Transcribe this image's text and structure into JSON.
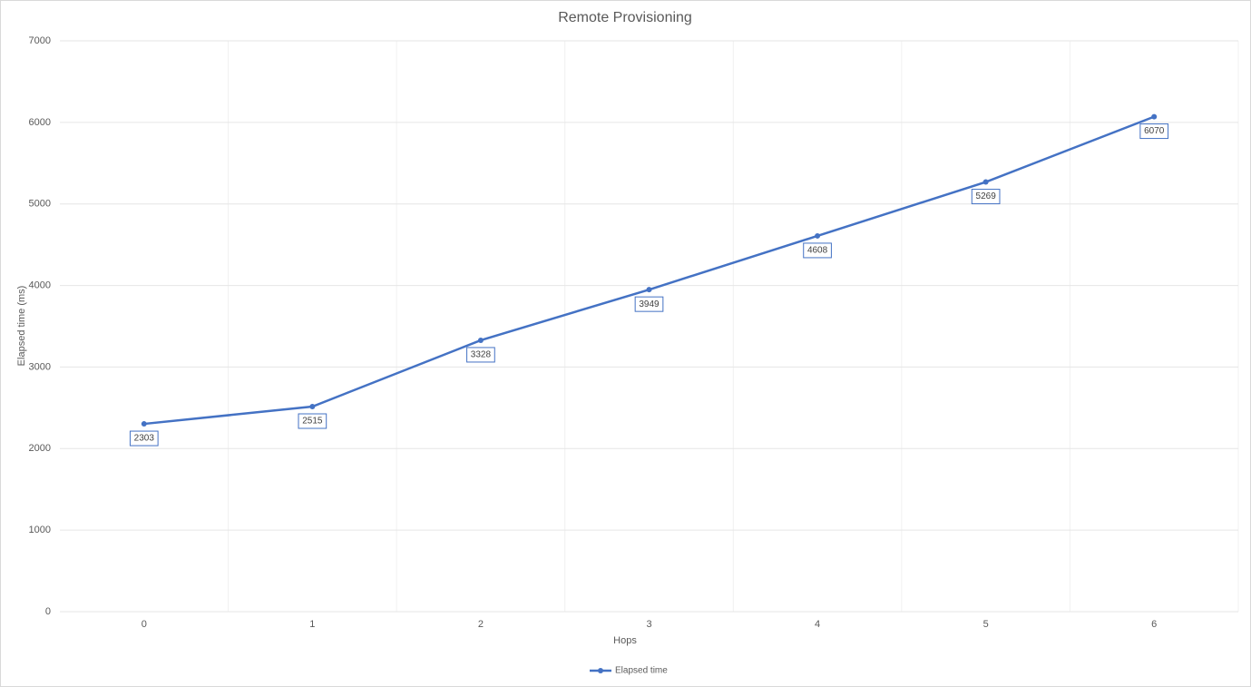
{
  "chart_data": {
    "type": "line",
    "title": "Remote Provisioning",
    "x_label": "Hops",
    "y_label": "Elapsed time (ms)",
    "categories": [
      "0",
      "1",
      "2",
      "3",
      "4",
      "5",
      "6"
    ],
    "series": [
      {
        "name": "Elapsed time",
        "color": "#4472c4",
        "values": [
          2303,
          2515,
          3328,
          3949,
          4608,
          5269,
          6070
        ]
      }
    ],
    "ylim": [
      0,
      7000
    ],
    "yticks": [
      0,
      1000,
      2000,
      3000,
      4000,
      5000,
      6000,
      7000
    ],
    "grid": true,
    "data_labels": true,
    "legend": "bottom"
  }
}
